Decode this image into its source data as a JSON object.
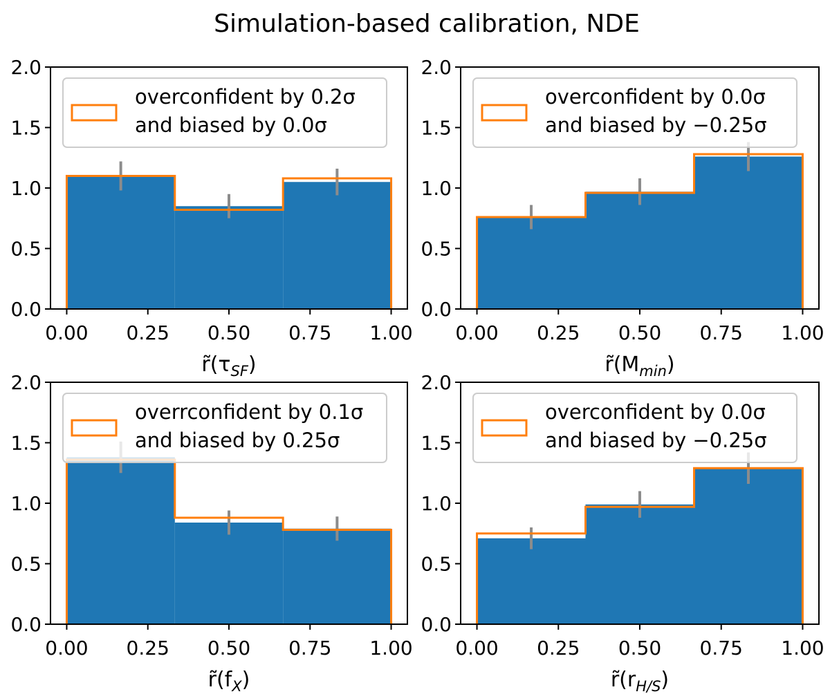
{
  "title": "Simulation-based calibration, NDE",
  "colors": {
    "bars": "#1f77b4",
    "step": "#ff7f0e",
    "errorbar": "#8c8c8c",
    "axes": "#000000"
  },
  "chart_data": [
    {
      "type": "bar",
      "panel": "top-left",
      "xlabel": {
        "base": "r̃(τ",
        "sub": "SF",
        "close": ")"
      },
      "x_bin_edges": [
        0,
        0.3333,
        0.6667,
        1.0
      ],
      "values": [
        1.1,
        0.85,
        1.05
      ],
      "errors": [
        0.12,
        0.1,
        0.11
      ],
      "step_values": [
        1.1,
        0.82,
        1.08
      ],
      "xticks": [
        "0.00",
        "0.25",
        "0.50",
        "0.75",
        "1.00"
      ],
      "yticks": [
        "0.0",
        "0.5",
        "1.0",
        "1.5",
        "2.0"
      ],
      "xlim": [
        -0.05,
        1.05
      ],
      "ylim": [
        0,
        2.0
      ],
      "legend": [
        "overconfident by 0.2σ",
        "and biased by 0.0σ"
      ]
    },
    {
      "type": "bar",
      "panel": "top-right",
      "xlabel": {
        "base": "r̃(M",
        "sub": "min",
        "close": ")"
      },
      "x_bin_edges": [
        0,
        0.3333,
        0.6667,
        1.0
      ],
      "values": [
        0.76,
        0.97,
        1.26
      ],
      "errors": [
        0.1,
        0.11,
        0.12
      ],
      "step_values": [
        0.76,
        0.96,
        1.28
      ],
      "xticks": [
        "0.00",
        "0.25",
        "0.50",
        "0.75",
        "1.00"
      ],
      "yticks": [
        "0.0",
        "0.5",
        "1.0",
        "1.5",
        "2.0"
      ],
      "xlim": [
        -0.05,
        1.05
      ],
      "ylim": [
        0,
        2.0
      ],
      "legend": [
        "overconfident by 0.0σ",
        "and biased by −0.25σ"
      ]
    },
    {
      "type": "bar",
      "panel": "bottom-left",
      "xlabel": {
        "base": "r̃(f",
        "sub": "X",
        "close": ")"
      },
      "x_bin_edges": [
        0,
        0.3333,
        0.6667,
        1.0
      ],
      "values": [
        1.38,
        0.84,
        0.79
      ],
      "errors": [
        0.13,
        0.1,
        0.1
      ],
      "step_values": [
        1.36,
        0.88,
        0.78
      ],
      "xticks": [
        "0.00",
        "0.25",
        "0.50",
        "0.75",
        "1.00"
      ],
      "yticks": [
        "0.0",
        "0.5",
        "1.0",
        "1.5",
        "2.0"
      ],
      "xlim": [
        -0.05,
        1.05
      ],
      "ylim": [
        0,
        2.0
      ],
      "legend": [
        "overrconfident by 0.1σ",
        "and biased by 0.25σ"
      ]
    },
    {
      "type": "bar",
      "panel": "bottom-right",
      "xlabel": {
        "base": "r̃(r",
        "sub": "H/S",
        "close": ")"
      },
      "x_bin_edges": [
        0,
        0.3333,
        0.6667,
        1.0
      ],
      "values": [
        0.71,
        0.99,
        1.29
      ],
      "errors": [
        0.09,
        0.11,
        0.13
      ],
      "step_values": [
        0.75,
        0.97,
        1.29
      ],
      "xticks": [
        "0.00",
        "0.25",
        "0.50",
        "0.75",
        "1.00"
      ],
      "yticks": [
        "0.0",
        "0.5",
        "1.0",
        "1.5",
        "2.0"
      ],
      "xlim": [
        -0.05,
        1.05
      ],
      "ylim": [
        0,
        2.0
      ],
      "legend": [
        "overconfident by 0.0σ",
        "and biased by −0.25σ"
      ]
    }
  ]
}
